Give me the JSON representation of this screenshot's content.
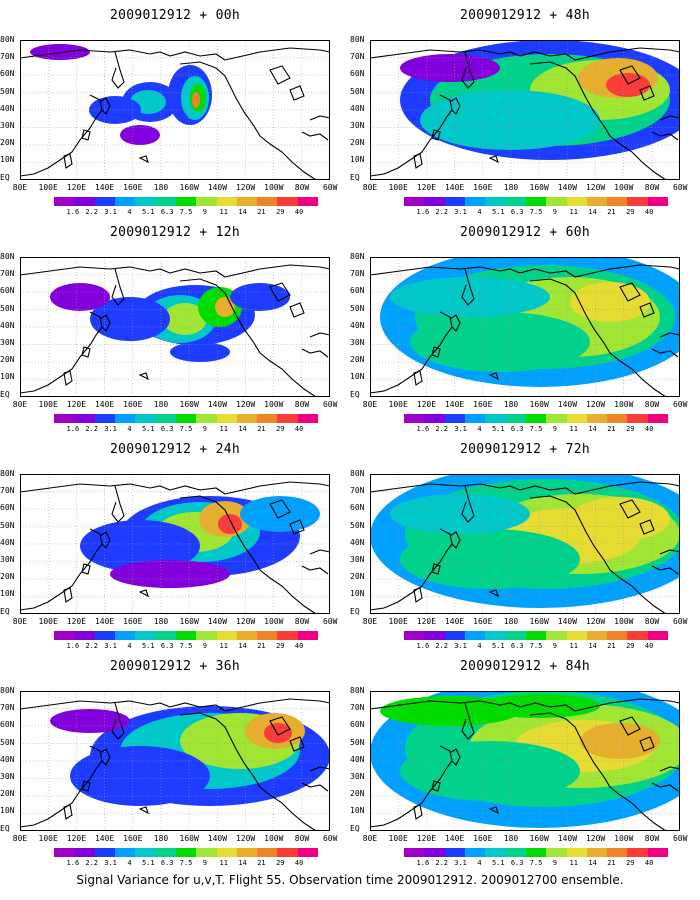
{
  "panels": [
    {
      "title": "2009012912 + 00h",
      "lead": 0
    },
    {
      "title": "2009012912 + 48h",
      "lead": 48
    },
    {
      "title": "2009012912 + 12h",
      "lead": 12
    },
    {
      "title": "2009012912 + 60h",
      "lead": 60
    },
    {
      "title": "2009012912 + 24h",
      "lead": 24
    },
    {
      "title": "2009012912 + 72h",
      "lead": 72
    },
    {
      "title": "2009012912 + 36h",
      "lead": 36
    },
    {
      "title": "2009012912 + 84h",
      "lead": 84
    }
  ],
  "lat_labels": [
    "80N",
    "70N",
    "60N",
    "50N",
    "40N",
    "30N",
    "20N",
    "10N",
    "EQ"
  ],
  "lon_labels": [
    "80E",
    "100E",
    "120E",
    "140E",
    "160E",
    "180",
    "160W",
    "140W",
    "120W",
    "100W",
    "80W",
    "60W"
  ],
  "colorbar": {
    "labels": [
      "1.6",
      "2.2",
      "3.1",
      "4",
      "5.1",
      "6.3",
      "7.5",
      "9",
      "11",
      "14",
      "21",
      "29",
      "40"
    ],
    "colors": [
      "#a000c8",
      "#8200dc",
      "#1e3cff",
      "#00a0ff",
      "#00c8c8",
      "#00d28c",
      "#00dc00",
      "#a0e632",
      "#e6dc32",
      "#e6af2d",
      "#f08228",
      "#fa3c3c",
      "#f00082"
    ]
  },
  "footer": "Signal Variance for u,v,T. Flight 55. Observation time 2009012912. 2009012700 ensemble."
}
